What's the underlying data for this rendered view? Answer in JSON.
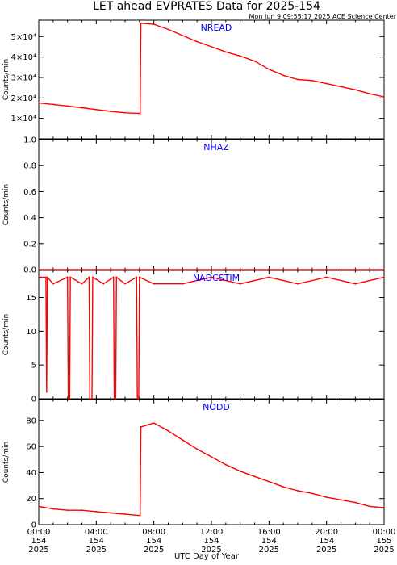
{
  "header": {
    "title": "LET ahead EVPRATES Data for 2025-154",
    "subtitle": "Mon Jun  9 09:55:17 2025 ACE Science Center"
  },
  "colors": {
    "series": "#ff0000",
    "panel_title": "#0000ff",
    "axis": "#000000"
  },
  "x_axis": {
    "label": "UTC Day of Year",
    "range_hours": [
      0,
      24
    ],
    "ticks": [
      {
        "hours": 0,
        "time": "00:00",
        "doy": "154",
        "year": "2025"
      },
      {
        "hours": 4,
        "time": "04:00",
        "doy": "154",
        "year": "2025"
      },
      {
        "hours": 8,
        "time": "08:00",
        "doy": "154",
        "year": "2025"
      },
      {
        "hours": 12,
        "time": "12:00",
        "doy": "154",
        "year": "2025"
      },
      {
        "hours": 16,
        "time": "16:00",
        "doy": "154",
        "year": "2025"
      },
      {
        "hours": 20,
        "time": "20:00",
        "doy": "154",
        "year": "2025"
      },
      {
        "hours": 24,
        "time": "00:00",
        "doy": "155",
        "year": "2025"
      }
    ]
  },
  "chart_data": [
    {
      "type": "line",
      "title": "NREAD",
      "ylabel": "Counts/min",
      "ylim": [
        0,
        58000
      ],
      "yticks": [
        {
          "value": 10000,
          "label": "1×10⁴"
        },
        {
          "value": 20000,
          "label": "2×10⁴"
        },
        {
          "value": 30000,
          "label": "3×10⁴"
        },
        {
          "value": 40000,
          "label": "4×10⁴"
        },
        {
          "value": 50000,
          "label": "5×10⁴"
        }
      ],
      "x_hours": [
        0,
        1,
        2,
        3,
        4,
        5,
        6,
        7.05,
        7.1,
        8,
        9,
        10,
        11,
        12,
        13,
        14,
        15,
        16,
        17,
        18,
        19,
        20,
        21,
        22,
        23,
        24
      ],
      "values": [
        17500,
        16800,
        16000,
        15200,
        14300,
        13400,
        12700,
        12400,
        56500,
        56000,
        53500,
        50500,
        47500,
        45000,
        42500,
        40500,
        38000,
        34000,
        31000,
        29000,
        28500,
        27000,
        25500,
        24000,
        22000,
        20500
      ]
    },
    {
      "type": "line",
      "title": "NHAZ",
      "ylabel": "Counts/min",
      "ylim": [
        0,
        1
      ],
      "yticks": [
        {
          "value": 0.0,
          "label": "0.0"
        },
        {
          "value": 0.2,
          "label": "0.2"
        },
        {
          "value": 0.4,
          "label": "0.4"
        },
        {
          "value": 0.6,
          "label": "0.6"
        },
        {
          "value": 0.8,
          "label": "0.8"
        },
        {
          "value": 1.0,
          "label": "1.0"
        }
      ],
      "x_hours": [
        0,
        24
      ],
      "values": [
        0,
        0
      ]
    },
    {
      "type": "line",
      "title": "NADCSTIM",
      "ylabel": "Counts/min",
      "ylim": [
        0,
        19
      ],
      "yticks": [
        {
          "value": 0,
          "label": "0"
        },
        {
          "value": 5,
          "label": "5"
        },
        {
          "value": 10,
          "label": "10"
        },
        {
          "value": 15,
          "label": "15"
        }
      ],
      "x_hours": [
        0,
        0.5,
        0.55,
        0.6,
        1.0,
        2.0,
        2.05,
        2.15,
        2.2,
        3.0,
        3.5,
        3.55,
        3.7,
        3.75,
        4.5,
        5.2,
        5.25,
        5.35,
        5.4,
        6.0,
        6.8,
        6.85,
        6.95,
        7.0,
        8.0,
        10.0,
        12.0,
        14.0,
        16.0,
        18.0,
        20.0,
        22.0,
        24.0
      ],
      "values": [
        18,
        18,
        1,
        18,
        17,
        18,
        0,
        0,
        18,
        17,
        18,
        0,
        0,
        18,
        17,
        18,
        0,
        0,
        18,
        17,
        18,
        0,
        0,
        18,
        17,
        17,
        18,
        17,
        18,
        17,
        18,
        17,
        18
      ]
    },
    {
      "type": "line",
      "title": "NODD",
      "ylabel": "Counts/min",
      "ylim": [
        0,
        96
      ],
      "yticks": [
        {
          "value": 0,
          "label": "0"
        },
        {
          "value": 20,
          "label": "20"
        },
        {
          "value": 40,
          "label": "40"
        },
        {
          "value": 60,
          "label": "60"
        },
        {
          "value": 80,
          "label": "80"
        }
      ],
      "x_hours": [
        0,
        1,
        2,
        3,
        4,
        5,
        6,
        7.05,
        7.1,
        8,
        9,
        10,
        11,
        12,
        13,
        14,
        15,
        16,
        17,
        18,
        19,
        20,
        21,
        22,
        23,
        24
      ],
      "values": [
        14,
        12,
        11,
        11,
        10,
        9,
        8,
        7,
        75,
        78,
        72,
        65,
        58,
        52,
        46,
        41,
        37,
        33,
        29,
        26,
        24,
        21,
        19,
        17,
        14,
        13
      ]
    }
  ]
}
